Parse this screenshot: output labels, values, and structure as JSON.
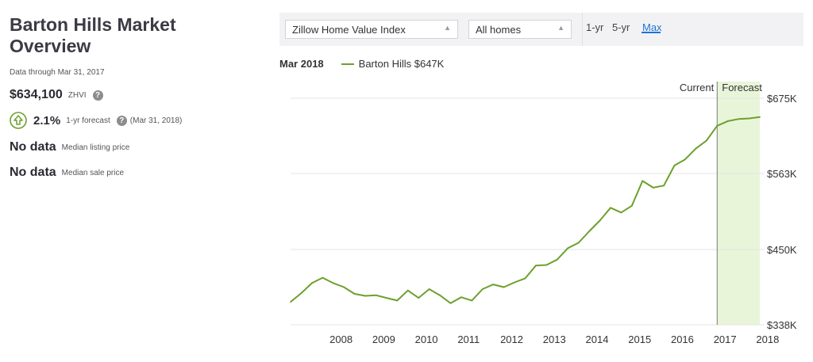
{
  "overview": {
    "title_line1": "Barton Hills Market",
    "title_line2": "Overview",
    "data_through": "Data through Mar 31, 2017",
    "zhvi_value": "$634,100",
    "zhvi_label": "ZHVI",
    "forecast_value": "2.1%",
    "forecast_label": "1-yr forecast",
    "forecast_date": "(Mar 31, 2018)",
    "listing_value": "No data",
    "listing_label": "Median listing price",
    "sale_value": "No data",
    "sale_label": "Median sale price",
    "help_glyph": "?",
    "up_icon": "arrow-up-circle-icon",
    "accent_color": "#6da02d"
  },
  "toolbar": {
    "index_select": "Zillow Home Value Index",
    "homes_select": "All homes",
    "ranges": [
      "1-yr",
      "5-yr",
      "Max"
    ],
    "active_range": "Max",
    "active_color": "#1e73d6"
  },
  "legend": {
    "date": "Mar 2018",
    "series_label": "Barton Hills $647K"
  },
  "chart_data": {
    "type": "line",
    "series": [
      {
        "name": "Barton Hills",
        "color": "#6da02d",
        "points": [
          [
            2007.25,
            372
          ],
          [
            2007.5,
            385
          ],
          [
            2007.75,
            400
          ],
          [
            2008.0,
            408
          ],
          [
            2008.25,
            400
          ],
          [
            2008.5,
            394
          ],
          [
            2008.75,
            384
          ],
          [
            2009.0,
            381
          ],
          [
            2009.25,
            382
          ],
          [
            2009.5,
            378
          ],
          [
            2009.75,
            374
          ],
          [
            2010.0,
            389
          ],
          [
            2010.25,
            378
          ],
          [
            2010.5,
            391
          ],
          [
            2010.75,
            382
          ],
          [
            2011.0,
            370
          ],
          [
            2011.25,
            379
          ],
          [
            2011.5,
            374
          ],
          [
            2011.75,
            391
          ],
          [
            2012.0,
            398
          ],
          [
            2012.25,
            394
          ],
          [
            2012.5,
            401
          ],
          [
            2012.75,
            407
          ],
          [
            2013.0,
            426
          ],
          [
            2013.25,
            427
          ],
          [
            2013.5,
            435
          ],
          [
            2013.75,
            452
          ],
          [
            2014.0,
            460
          ],
          [
            2014.25,
            477
          ],
          [
            2014.5,
            493
          ],
          [
            2014.75,
            512
          ],
          [
            2015.0,
            505
          ],
          [
            2015.25,
            515
          ],
          [
            2015.5,
            552
          ],
          [
            2015.75,
            542
          ],
          [
            2016.0,
            545
          ],
          [
            2016.25,
            575
          ],
          [
            2016.5,
            584
          ],
          [
            2016.75,
            600
          ],
          [
            2017.0,
            612
          ],
          [
            2017.25,
            634
          ],
          [
            2017.5,
            641
          ],
          [
            2017.75,
            644
          ],
          [
            2018.0,
            645
          ],
          [
            2018.25,
            647
          ]
        ]
      }
    ],
    "x_ticks": [
      "2008",
      "2009",
      "2010",
      "2011",
      "2012",
      "2013",
      "2014",
      "2015",
      "2016",
      "2017",
      "2018"
    ],
    "y_ticks": [
      338,
      450,
      563,
      675
    ],
    "y_tick_labels": [
      "$338K",
      "$450K",
      "$563K",
      "$675K"
    ],
    "xlim": [
      2007.25,
      2018.25
    ],
    "ylim": [
      338,
      675
    ],
    "forecast_start": 2017.25,
    "forecast_end": 2018.25,
    "current_label": "Current",
    "forecast_label": "Forecast",
    "forecast_fill": "#e9f5d9",
    "grid": true
  }
}
